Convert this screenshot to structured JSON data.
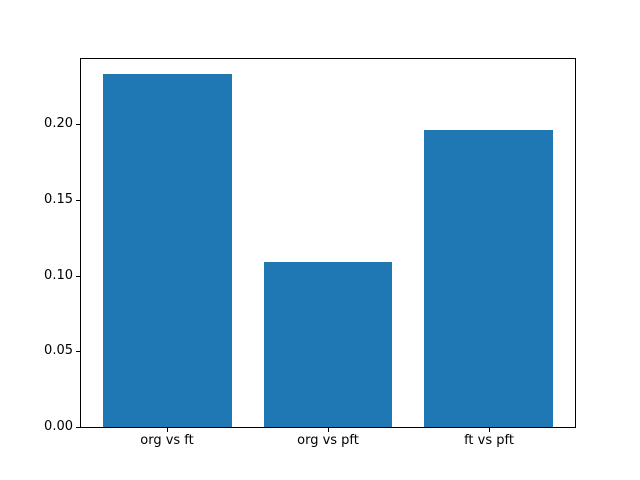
{
  "figure": {
    "background": "#ffffff"
  },
  "chart_data": {
    "type": "bar",
    "categories": [
      "org vs ft",
      "org vs pft",
      "ft vs pft"
    ],
    "values": [
      0.233,
      0.109,
      0.196
    ],
    "title": "",
    "xlabel": "",
    "ylabel": "",
    "ylim": [
      0,
      0.243
    ],
    "xlim": [
      -0.54,
      2.54
    ],
    "bar_width": 0.8,
    "ytick_values": [
      0,
      0.05,
      0.1,
      0.15,
      0.2
    ],
    "ytick_labels": [
      "0.00",
      "0.05",
      "0.10",
      "0.15",
      "0.20"
    ],
    "bar_color": "#1f77b4",
    "axis_color": "#000000",
    "grid": false,
    "legend": false
  }
}
